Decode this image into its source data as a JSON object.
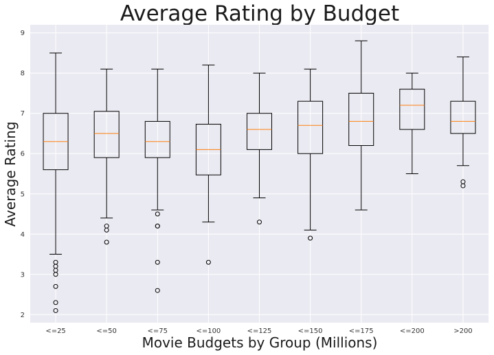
{
  "chart_data": {
    "type": "box",
    "title": "Average Rating by Budget",
    "xlabel": "Movie Budgets by Group (Millions)",
    "ylabel": "Average Rating",
    "categories": [
      "<=25",
      "<=50",
      "<=75",
      "<=100",
      "<=125",
      "<=150",
      "<=175",
      "<=200",
      ">200"
    ],
    "ylim": [
      1.8,
      9.2
    ],
    "yticks": [
      2,
      3,
      4,
      5,
      6,
      7,
      8,
      9
    ],
    "grid": true,
    "boxes": [
      {
        "whisker_low": 3.5,
        "q1": 5.6,
        "median": 6.3,
        "q3": 7.0,
        "whisker_high": 8.5,
        "outliers": [
          3.3,
          3.2,
          3.1,
          3.0,
          2.7,
          2.3,
          2.1
        ]
      },
      {
        "whisker_low": 4.4,
        "q1": 5.9,
        "median": 6.5,
        "q3": 7.05,
        "whisker_high": 8.1,
        "outliers": [
          4.2,
          4.1,
          3.8
        ]
      },
      {
        "whisker_low": 4.6,
        "q1": 5.9,
        "median": 6.3,
        "q3": 6.8,
        "whisker_high": 8.1,
        "outliers": [
          4.5,
          4.2,
          4.2,
          3.3,
          2.6
        ]
      },
      {
        "whisker_low": 4.3,
        "q1": 5.47,
        "median": 6.1,
        "q3": 6.73,
        "whisker_high": 8.2,
        "outliers": [
          3.3
        ]
      },
      {
        "whisker_low": 4.9,
        "q1": 6.1,
        "median": 6.6,
        "q3": 7.0,
        "whisker_high": 8.0,
        "outliers": [
          4.3
        ]
      },
      {
        "whisker_low": 4.1,
        "q1": 6.0,
        "median": 6.7,
        "q3": 7.3,
        "whisker_high": 8.1,
        "outliers": [
          3.9
        ]
      },
      {
        "whisker_low": 4.6,
        "q1": 6.2,
        "median": 6.8,
        "q3": 7.5,
        "whisker_high": 8.8,
        "outliers": []
      },
      {
        "whisker_low": 5.5,
        "q1": 6.6,
        "median": 7.2,
        "q3": 7.6,
        "whisker_high": 8.0,
        "outliers": []
      },
      {
        "whisker_low": 5.7,
        "q1": 6.5,
        "median": 6.8,
        "q3": 7.3,
        "whisker_high": 8.4,
        "outliers": [
          5.3,
          5.2
        ]
      }
    ],
    "colors": {
      "plot_background": "#eaeaf2",
      "grid": "#ffffff",
      "box_line": "#000000",
      "median_line": "#ff7f0e"
    }
  }
}
